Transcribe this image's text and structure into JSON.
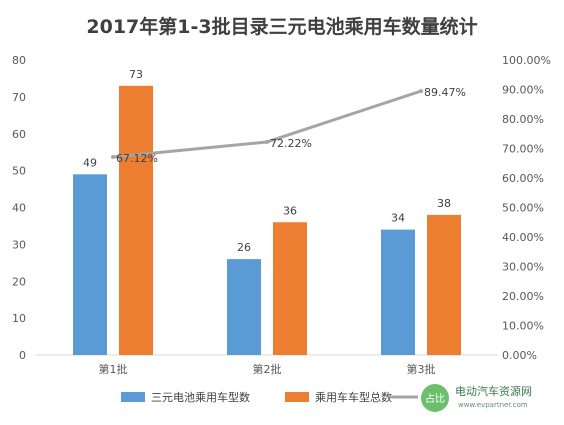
{
  "chart_data": {
    "type": "bar",
    "title": "2017年第1-3批目录三元电池乘用车数量统计",
    "categories": [
      "第1批",
      "第2批",
      "第3批"
    ],
    "series": [
      {
        "name": "三元电池乘用车型数",
        "kind": "bar",
        "axis": "left",
        "color": "#5b9bd5",
        "values": [
          49,
          26,
          34
        ],
        "labels": [
          "49",
          "26",
          "34"
        ]
      },
      {
        "name": "乘用车车型总数",
        "kind": "bar",
        "axis": "left",
        "color": "#ed7d31",
        "values": [
          73,
          36,
          38
        ],
        "labels": [
          "73",
          "36",
          "38"
        ]
      },
      {
        "name": "占比",
        "kind": "line",
        "axis": "right",
        "color": "#a5a5a5",
        "values": [
          67.12,
          72.22,
          89.47
        ],
        "labels": [
          "67.12%",
          "72.22%",
          "89.47%"
        ]
      }
    ],
    "ylim": [
      0,
      80
    ],
    "y_ticks": [
      "0",
      "10",
      "20",
      "30",
      "40",
      "50",
      "60",
      "70",
      "80"
    ],
    "y2lim": [
      0,
      100
    ],
    "y2_ticks": [
      "0.00%",
      "10.00%",
      "20.00%",
      "30.00%",
      "40.00%",
      "50.00%",
      "60.00%",
      "70.00%",
      "80.00%",
      "90.00%",
      "100.00%"
    ],
    "grid": false,
    "legend": "bottom"
  },
  "watermark": {
    "logo_text": "占比",
    "text": "电动汽车资源网",
    "url": "www.evpartner.com",
    "color": "#4caf50"
  }
}
